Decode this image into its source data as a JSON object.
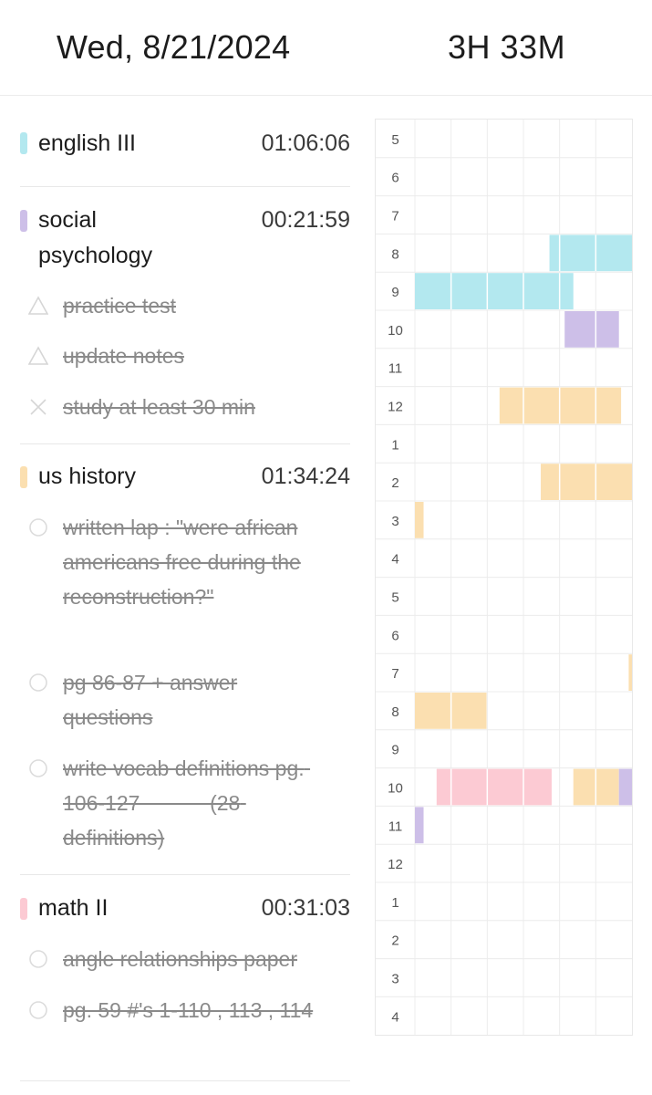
{
  "header": {
    "date": "Wed, 8/21/2024",
    "total": "3H 33M"
  },
  "subjects": [
    {
      "name": "english III",
      "time": "01:06:06",
      "color": "#b3e8ef",
      "tasks": []
    },
    {
      "name": "social psychology",
      "time": "00:21:59",
      "color": "#cdbfe8",
      "tasks": [
        {
          "text": "practice test",
          "icon": "triangle-icon"
        },
        {
          "text": "update notes",
          "icon": "triangle-icon"
        },
        {
          "text": "study at least 30 min",
          "icon": "x-icon"
        }
      ]
    },
    {
      "name": "us history",
      "time": "01:34:24",
      "color": "#fbdfb0",
      "tasks": [
        {
          "text": "written lap : \"were african americans free during the reconstruction?\"",
          "icon": "circle-icon"
        },
        {
          "text": "pg 86-87 + answer questions",
          "icon": "circle-icon"
        },
        {
          "text": "write vocab definitions pg. 106-127            (28 definitions)",
          "icon": "circle-icon"
        }
      ]
    },
    {
      "name": "math II",
      "time": "00:31:03",
      "color": "#fccad3",
      "tasks": [
        {
          "text": "angle relationships paper",
          "icon": "circle-icon"
        },
        {
          "text": "pg. 59 #'s 1-110 , 113 , 114",
          "icon": "circle-icon"
        }
      ]
    }
  ],
  "timeline": {
    "hours": [
      "5",
      "6",
      "7",
      "8",
      "9",
      "10",
      "11",
      "12",
      "1",
      "2",
      "3",
      "4",
      "5",
      "6",
      "7",
      "8",
      "9",
      "10",
      "11",
      "12",
      "1",
      "2",
      "3",
      "4"
    ],
    "blocks": [
      {
        "row": 3,
        "start": 0.62,
        "end": 1.0,
        "subject": "english"
      },
      {
        "row": 4,
        "start": 0.0,
        "end": 0.73,
        "subject": "english"
      },
      {
        "row": 5,
        "start": 0.69,
        "end": 0.94,
        "subject": "social"
      },
      {
        "row": 7,
        "start": 0.39,
        "end": 0.95,
        "subject": "history"
      },
      {
        "row": 9,
        "start": 0.58,
        "end": 1.0,
        "subject": "history"
      },
      {
        "row": 10,
        "start": 0.0,
        "end": 0.04,
        "subject": "history"
      },
      {
        "row": 14,
        "start": 0.985,
        "end": 1.0,
        "subject": "history"
      },
      {
        "row": 15,
        "start": 0.0,
        "end": 0.33,
        "subject": "history"
      },
      {
        "row": 17,
        "start": 0.1,
        "end": 0.63,
        "subject": "math"
      },
      {
        "row": 17,
        "start": 0.73,
        "end": 0.94,
        "subject": "history"
      },
      {
        "row": 17,
        "start": 0.94,
        "end": 1.0,
        "subject": "social"
      },
      {
        "row": 18,
        "start": 0.0,
        "end": 0.04,
        "subject": "social"
      }
    ],
    "colors": {
      "english": "#b3e8ef",
      "social": "#cdbfe8",
      "history": "#fbdfb0",
      "math": "#fccad3"
    }
  }
}
